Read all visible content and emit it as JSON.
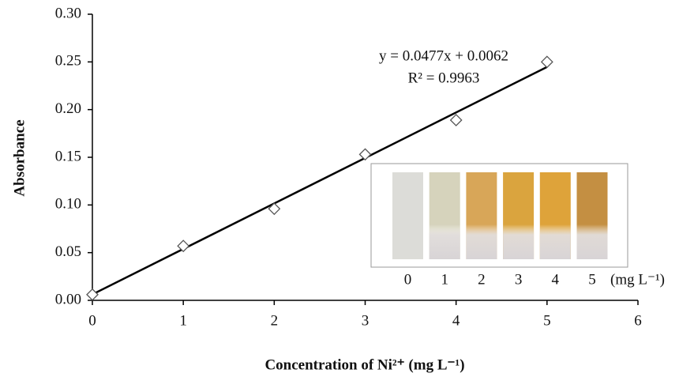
{
  "chart_data": {
    "type": "scatter",
    "x_label": "Concentration of Ni²⁺ (mg L⁻¹)",
    "y_label": "Absorbance",
    "x": [
      0,
      1,
      2,
      3,
      4,
      5
    ],
    "values": [
      0.006,
      0.057,
      0.096,
      0.153,
      0.189,
      0.25
    ],
    "color": "#555555",
    "xlim": [
      0,
      6
    ],
    "xticks": [
      0,
      1,
      2,
      3,
      4,
      5,
      6
    ],
    "ylim": [
      0,
      0.3
    ],
    "yticks": [
      {
        "value": 0,
        "label": "0.00"
      },
      {
        "value": 0.05,
        "label": "0.05"
      },
      {
        "value": 0.1,
        "label": "0.10"
      },
      {
        "value": 0.15,
        "label": "0.15"
      },
      {
        "value": 0.2,
        "label": "0.20"
      },
      {
        "value": 0.25,
        "label": "0.25"
      },
      {
        "value": 0.3,
        "label": "0.30"
      }
    ],
    "trendline": {
      "slope": 0.0477,
      "intercept": 0.0062,
      "label": "y = 0.0477x + 0.0062",
      "r2_label": "R² = 0.9963",
      "color": "#000000"
    },
    "inset": {
      "labels": [
        "0",
        "1",
        "2",
        "3",
        "4",
        "5"
      ],
      "unit": "(mg L⁻¹)",
      "colors": [
        "#dcdcd8",
        "#d6d3bc",
        "#d8a658",
        "#daa43e",
        "#dea33a",
        "#c48f42"
      ]
    }
  }
}
